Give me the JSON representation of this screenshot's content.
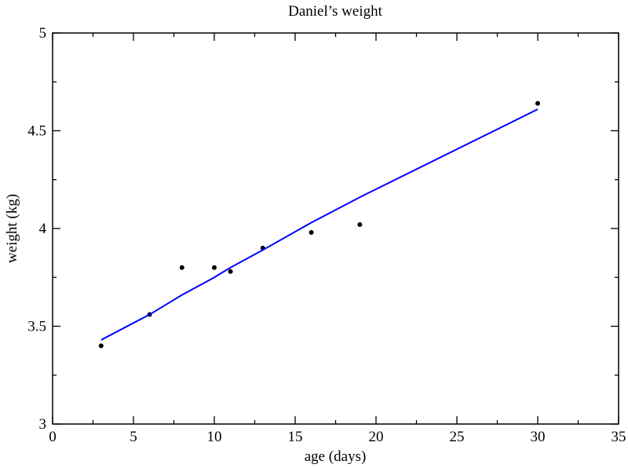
{
  "chart_data": {
    "type": "scatter",
    "title": "Daniel’s weight",
    "xlabel": "age (days)",
    "ylabel": "weight (kg)",
    "xlim": [
      0,
      35
    ],
    "ylim": [
      3,
      5
    ],
    "x_ticks": [
      0,
      5,
      10,
      15,
      20,
      25,
      30,
      35
    ],
    "x_tick_labels": [
      "0",
      "5",
      "10",
      "15",
      "20",
      "25",
      "30",
      "35"
    ],
    "y_ticks": [
      3,
      3.5,
      4,
      4.5,
      5
    ],
    "y_tick_labels": [
      "3",
      "3.5",
      "4",
      "4.5",
      "5"
    ],
    "x_minor_step": 2.5,
    "y_minor_step": 0.25,
    "grid": false,
    "legend": "none",
    "series": [
      {
        "kind": "points",
        "color": "#000000",
        "x": [
          3,
          6,
          8,
          10,
          11,
          13,
          16,
          19,
          30
        ],
        "y": [
          3.4,
          3.56,
          3.8,
          3.8,
          3.78,
          3.9,
          3.98,
          4.02,
          4.64
        ]
      },
      {
        "kind": "fit-line",
        "color": "#0000ff",
        "x": [
          3,
          6,
          8,
          10,
          11,
          13,
          16,
          19,
          30
        ],
        "y": [
          3.43,
          3.56,
          3.66,
          3.75,
          3.8,
          3.89,
          4.03,
          4.16,
          4.61
        ]
      }
    ]
  }
}
